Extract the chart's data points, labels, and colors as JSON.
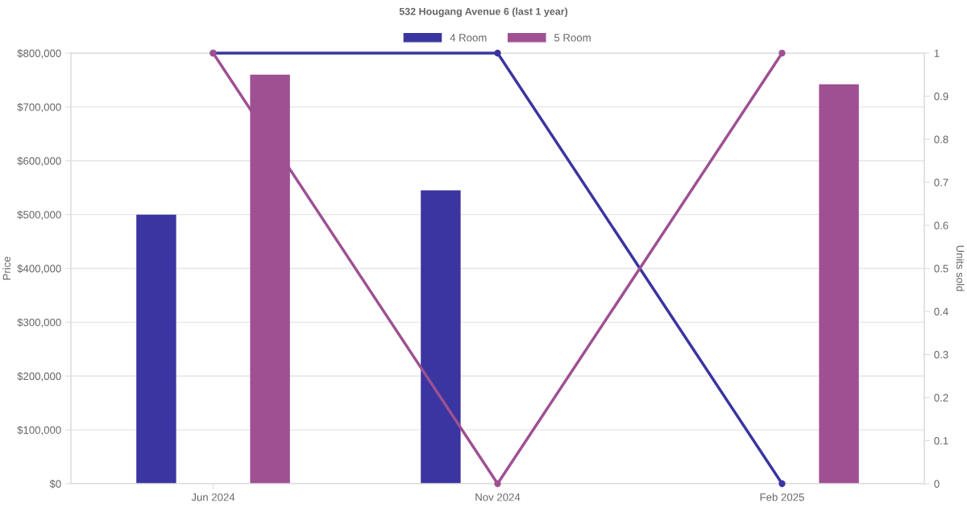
{
  "chart_data": {
    "type": "bar",
    "title": "532 Hougang Avenue 6 (last 1 year)",
    "ylabel": "Price",
    "y2label": "Units sold",
    "categories": [
      "Jun 2024",
      "Nov 2024",
      "Feb 2025"
    ],
    "series": [
      {
        "name": "4 Room",
        "color": "#3a35a0",
        "values": [
          500000,
          545000,
          null
        ]
      },
      {
        "name": "5 Room",
        "color": "#9e5093",
        "values": [
          760000,
          null,
          742000
        ]
      },
      {
        "type": "line",
        "axis": "y2",
        "color": "#3a35a0",
        "values": [
          1,
          1,
          0
        ]
      },
      {
        "type": "line",
        "axis": "y2",
        "color": "#9e5093",
        "values": [
          1,
          0,
          1
        ]
      }
    ],
    "ylim": [
      0,
      800000
    ],
    "yticks": [
      {
        "value": 0,
        "label": "$0"
      },
      {
        "value": 100000,
        "label": "$100,000"
      },
      {
        "value": 200000,
        "label": "$200,000"
      },
      {
        "value": 300000,
        "label": "$300,000"
      },
      {
        "value": 400000,
        "label": "$400,000"
      },
      {
        "value": 500000,
        "label": "$500,000"
      },
      {
        "value": 600000,
        "label": "$600,000"
      },
      {
        "value": 700000,
        "label": "$700,000"
      },
      {
        "value": 800000,
        "label": "$800,000"
      }
    ],
    "y2lim": [
      0,
      1
    ],
    "y2ticks": [
      0,
      0.1,
      0.2,
      0.3,
      0.4,
      0.5,
      0.6,
      0.7,
      0.8,
      0.9,
      1
    ],
    "grid": "y",
    "legend": "top",
    "marker": "circle",
    "line_style": "solid"
  }
}
